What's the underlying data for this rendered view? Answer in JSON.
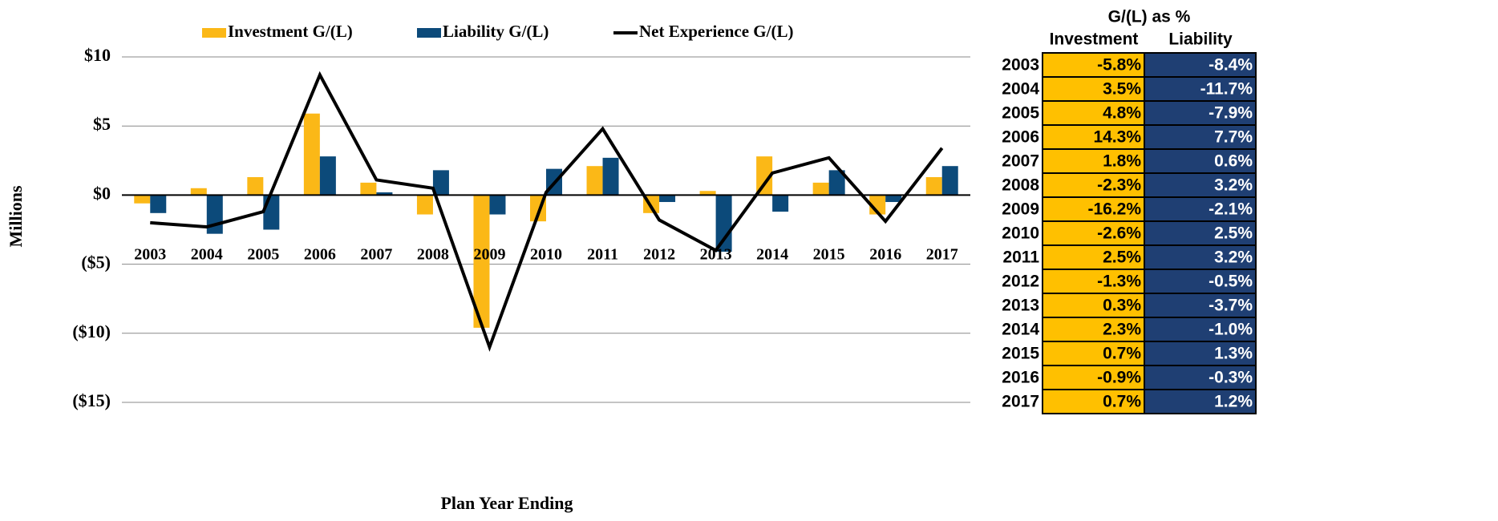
{
  "chart_data": {
    "type": "bar",
    "y_label": "Millions",
    "x_label": "Plan Year Ending",
    "categories": [
      "2003",
      "2004",
      "2005",
      "2006",
      "2007",
      "2008",
      "2009",
      "2010",
      "2011",
      "2012",
      "2013",
      "2014",
      "2015",
      "2016",
      "2017"
    ],
    "series": [
      {
        "name": "Investment G/(L)",
        "color": "#fbb817",
        "values": [
          -0.6,
          0.5,
          1.3,
          5.9,
          0.9,
          -1.4,
          -9.6,
          -1.9,
          2.1,
          -1.3,
          0.3,
          2.8,
          0.9,
          -1.4,
          1.3
        ]
      },
      {
        "name": "Liability G/(L)",
        "color": "#0c4a7a",
        "values": [
          -1.3,
          -2.8,
          -2.5,
          2.8,
          0.2,
          1.8,
          -1.4,
          1.9,
          2.7,
          -0.5,
          -4.1,
          -1.2,
          1.8,
          -0.5,
          2.1
        ]
      },
      {
        "name": "Net Experience G/(L)",
        "color": "#000000",
        "type": "line",
        "values": [
          -2.0,
          -2.3,
          -1.2,
          8.7,
          1.1,
          0.5,
          -11.0,
          0.2,
          4.8,
          -1.8,
          -4.0,
          1.6,
          2.7,
          -1.9,
          3.4
        ]
      }
    ],
    "ylim": [
      -15,
      10
    ],
    "yticks": [
      {
        "value": -15,
        "label": "($15)"
      },
      {
        "value": -10,
        "label": "($10)"
      },
      {
        "value": -5,
        "label": "($5)"
      },
      {
        "value": 0,
        "label": "$0"
      },
      {
        "value": 5,
        "label": "$5"
      },
      {
        "value": 10,
        "label": "$10"
      }
    ],
    "grid": true,
    "legend": "top"
  },
  "table": {
    "title": "G/(L) as %",
    "headers": [
      "Investment",
      "Liability"
    ],
    "rows": [
      [
        "2003",
        "-5.8%",
        "-8.4%"
      ],
      [
        "2004",
        "3.5%",
        "-11.7%"
      ],
      [
        "2005",
        "4.8%",
        "-7.9%"
      ],
      [
        "2006",
        "14.3%",
        "7.7%"
      ],
      [
        "2007",
        "1.8%",
        "0.6%"
      ],
      [
        "2008",
        "-2.3%",
        "3.2%"
      ],
      [
        "2009",
        "-16.2%",
        "-2.1%"
      ],
      [
        "2010",
        "-2.6%",
        "2.5%"
      ],
      [
        "2011",
        "2.5%",
        "3.2%"
      ],
      [
        "2012",
        "-1.3%",
        "-0.5%"
      ],
      [
        "2013",
        "0.3%",
        "-3.7%"
      ],
      [
        "2014",
        "2.3%",
        "-1.0%"
      ],
      [
        "2015",
        "0.7%",
        "1.3%"
      ],
      [
        "2016",
        "-0.9%",
        "-0.3%"
      ],
      [
        "2017",
        "0.7%",
        "1.2%"
      ]
    ]
  }
}
